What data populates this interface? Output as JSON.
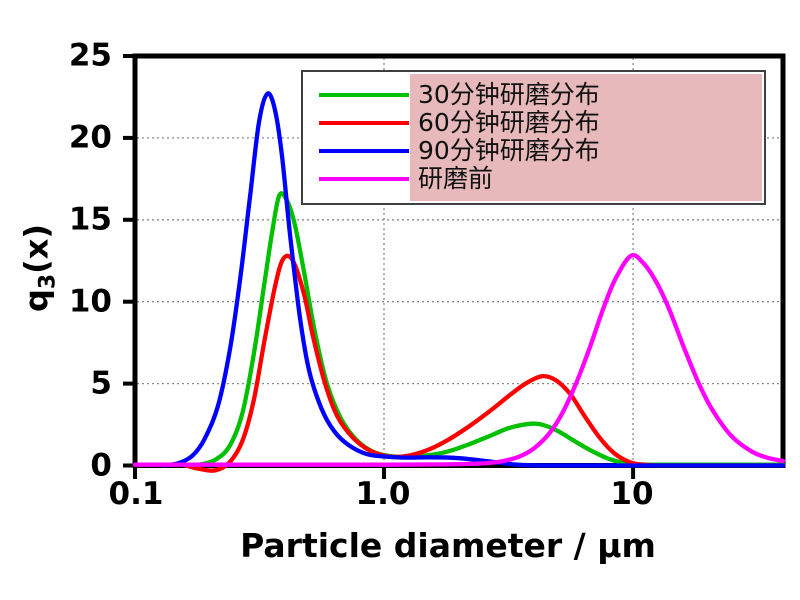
{
  "figure": {
    "background": "#ffffff",
    "frame_color": "#000000",
    "grid_color": "#8a8a8a"
  },
  "axes": {
    "y": {
      "title_main": "q",
      "title_sub": "3",
      "title_rest": "(x)",
      "tick_labels": [
        "25",
        "20",
        "15",
        "10",
        "5",
        "0"
      ],
      "ticks": [
        0,
        5,
        10,
        15,
        20,
        25
      ]
    },
    "x": {
      "title": "Particle diameter / µm",
      "tick_labels": [
        "0.1",
        "1.0",
        "10"
      ],
      "tick_values": [
        0.1,
        1.0,
        10
      ],
      "scale": "log"
    }
  },
  "legend": {
    "highlight_color": "#e7b9bb",
    "entries": [
      {
        "label": "30分钟研磨分布",
        "color": "#00c000"
      },
      {
        "label": "60分钟研磨分布",
        "color": "#ff0000"
      },
      {
        "label": "90分钟研磨分布",
        "color": "#0000ff"
      },
      {
        "label": "研磨前",
        "color": "#ff00ff"
      }
    ]
  },
  "chart_data": {
    "type": "line",
    "x_scale": "log",
    "xlim": [
      0.1,
      40
    ],
    "ylim": [
      0,
      25
    ],
    "xlabel": "Particle diameter / µm",
    "ylabel": "q3(x)",
    "grid": {
      "y_major": [
        5,
        10,
        15,
        20
      ],
      "x_major": [
        1.0,
        10
      ]
    },
    "legend_position": "top-right",
    "series": [
      {
        "name": "30分钟研磨分布",
        "color": "#00c000",
        "points": [
          [
            0.16,
            0
          ],
          [
            0.18,
            0.05
          ],
          [
            0.21,
            0.35
          ],
          [
            0.24,
            1.2
          ],
          [
            0.27,
            3.2
          ],
          [
            0.3,
            6.8
          ],
          [
            0.33,
            11.0
          ],
          [
            0.355,
            14.2
          ],
          [
            0.38,
            16.5
          ],
          [
            0.41,
            16.1
          ],
          [
            0.44,
            14.6
          ],
          [
            0.48,
            11.6
          ],
          [
            0.53,
            8.0
          ],
          [
            0.59,
            5.0
          ],
          [
            0.67,
            2.9
          ],
          [
            0.77,
            1.6
          ],
          [
            0.9,
            0.85
          ],
          [
            1.05,
            0.58
          ],
          [
            1.25,
            0.52
          ],
          [
            1.5,
            0.62
          ],
          [
            1.8,
            0.85
          ],
          [
            2.2,
            1.3
          ],
          [
            2.7,
            1.85
          ],
          [
            3.2,
            2.3
          ],
          [
            3.9,
            2.55
          ],
          [
            4.4,
            2.45
          ],
          [
            5.0,
            2.1
          ],
          [
            5.8,
            1.5
          ],
          [
            6.8,
            0.9
          ],
          [
            8.0,
            0.4
          ],
          [
            9.5,
            0.12
          ],
          [
            11,
            0.06
          ],
          [
            14,
            0.05
          ],
          [
            20,
            0.05
          ],
          [
            30,
            0.05
          ],
          [
            40,
            0.05
          ]
        ]
      },
      {
        "name": "60分钟研磨分布",
        "color": "#ff0000",
        "points": [
          [
            0.16,
            0
          ],
          [
            0.18,
            -0.2
          ],
          [
            0.21,
            -0.3
          ],
          [
            0.24,
            0.2
          ],
          [
            0.27,
            1.5
          ],
          [
            0.3,
            4.0
          ],
          [
            0.33,
            7.5
          ],
          [
            0.36,
            10.5
          ],
          [
            0.385,
            12.3
          ],
          [
            0.41,
            12.8
          ],
          [
            0.44,
            12.2
          ],
          [
            0.48,
            10.3
          ],
          [
            0.52,
            7.8
          ],
          [
            0.58,
            5.0
          ],
          [
            0.65,
            3.0
          ],
          [
            0.75,
            1.7
          ],
          [
            0.88,
            0.9
          ],
          [
            1.05,
            0.55
          ],
          [
            1.25,
            0.6
          ],
          [
            1.5,
            0.95
          ],
          [
            1.8,
            1.55
          ],
          [
            2.2,
            2.4
          ],
          [
            2.7,
            3.4
          ],
          [
            3.2,
            4.3
          ],
          [
            3.7,
            5.0
          ],
          [
            4.3,
            5.45
          ],
          [
            4.9,
            5.2
          ],
          [
            5.6,
            4.35
          ],
          [
            6.4,
            3.0
          ],
          [
            7.3,
            1.75
          ],
          [
            8.4,
            0.75
          ],
          [
            9.7,
            0.2
          ],
          [
            11,
            0.05
          ],
          [
            13,
            0
          ],
          [
            20,
            0
          ],
          [
            40,
            0
          ]
        ]
      },
      {
        "name": "90分钟研磨分布",
        "color": "#0000ff",
        "points": [
          [
            0.13,
            0
          ],
          [
            0.15,
            0.15
          ],
          [
            0.17,
            0.6
          ],
          [
            0.19,
            1.6
          ],
          [
            0.215,
            3.6
          ],
          [
            0.24,
            7.0
          ],
          [
            0.265,
            11.5
          ],
          [
            0.29,
            16.5
          ],
          [
            0.315,
            21.0
          ],
          [
            0.34,
            22.7
          ],
          [
            0.365,
            21.7
          ],
          [
            0.39,
            18.8
          ],
          [
            0.42,
            14.0
          ],
          [
            0.46,
            9.0
          ],
          [
            0.5,
            5.8
          ],
          [
            0.56,
            3.5
          ],
          [
            0.63,
            2.1
          ],
          [
            0.72,
            1.25
          ],
          [
            0.85,
            0.7
          ],
          [
            1.0,
            0.55
          ],
          [
            1.2,
            0.48
          ],
          [
            1.5,
            0.5
          ],
          [
            1.9,
            0.47
          ],
          [
            2.3,
            0.36
          ],
          [
            2.8,
            0.2
          ],
          [
            3.3,
            0.07
          ],
          [
            3.9,
            0.01
          ],
          [
            4.6,
            0
          ],
          [
            6,
            0
          ],
          [
            10,
            0
          ],
          [
            20,
            0
          ],
          [
            40,
            0
          ]
        ]
      },
      {
        "name": "研磨前",
        "color": "#ff00ff",
        "points": [
          [
            0.1,
            0.05
          ],
          [
            0.5,
            0.05
          ],
          [
            1.0,
            0.05
          ],
          [
            1.8,
            0.07
          ],
          [
            2.5,
            0.13
          ],
          [
            3.0,
            0.27
          ],
          [
            3.5,
            0.55
          ],
          [
            4.0,
            1.05
          ],
          [
            4.6,
            1.95
          ],
          [
            5.2,
            3.2
          ],
          [
            5.9,
            5.0
          ],
          [
            6.7,
            7.2
          ],
          [
            7.6,
            9.6
          ],
          [
            8.5,
            11.4
          ],
          [
            9.8,
            12.8
          ],
          [
            11.0,
            12.35
          ],
          [
            12.5,
            11.1
          ],
          [
            14.0,
            9.5
          ],
          [
            16.0,
            7.2
          ],
          [
            18.5,
            4.9
          ],
          [
            21.0,
            3.3
          ],
          [
            25.0,
            1.75
          ],
          [
            30.0,
            0.85
          ],
          [
            35.0,
            0.45
          ],
          [
            40.0,
            0.28
          ]
        ]
      }
    ]
  }
}
